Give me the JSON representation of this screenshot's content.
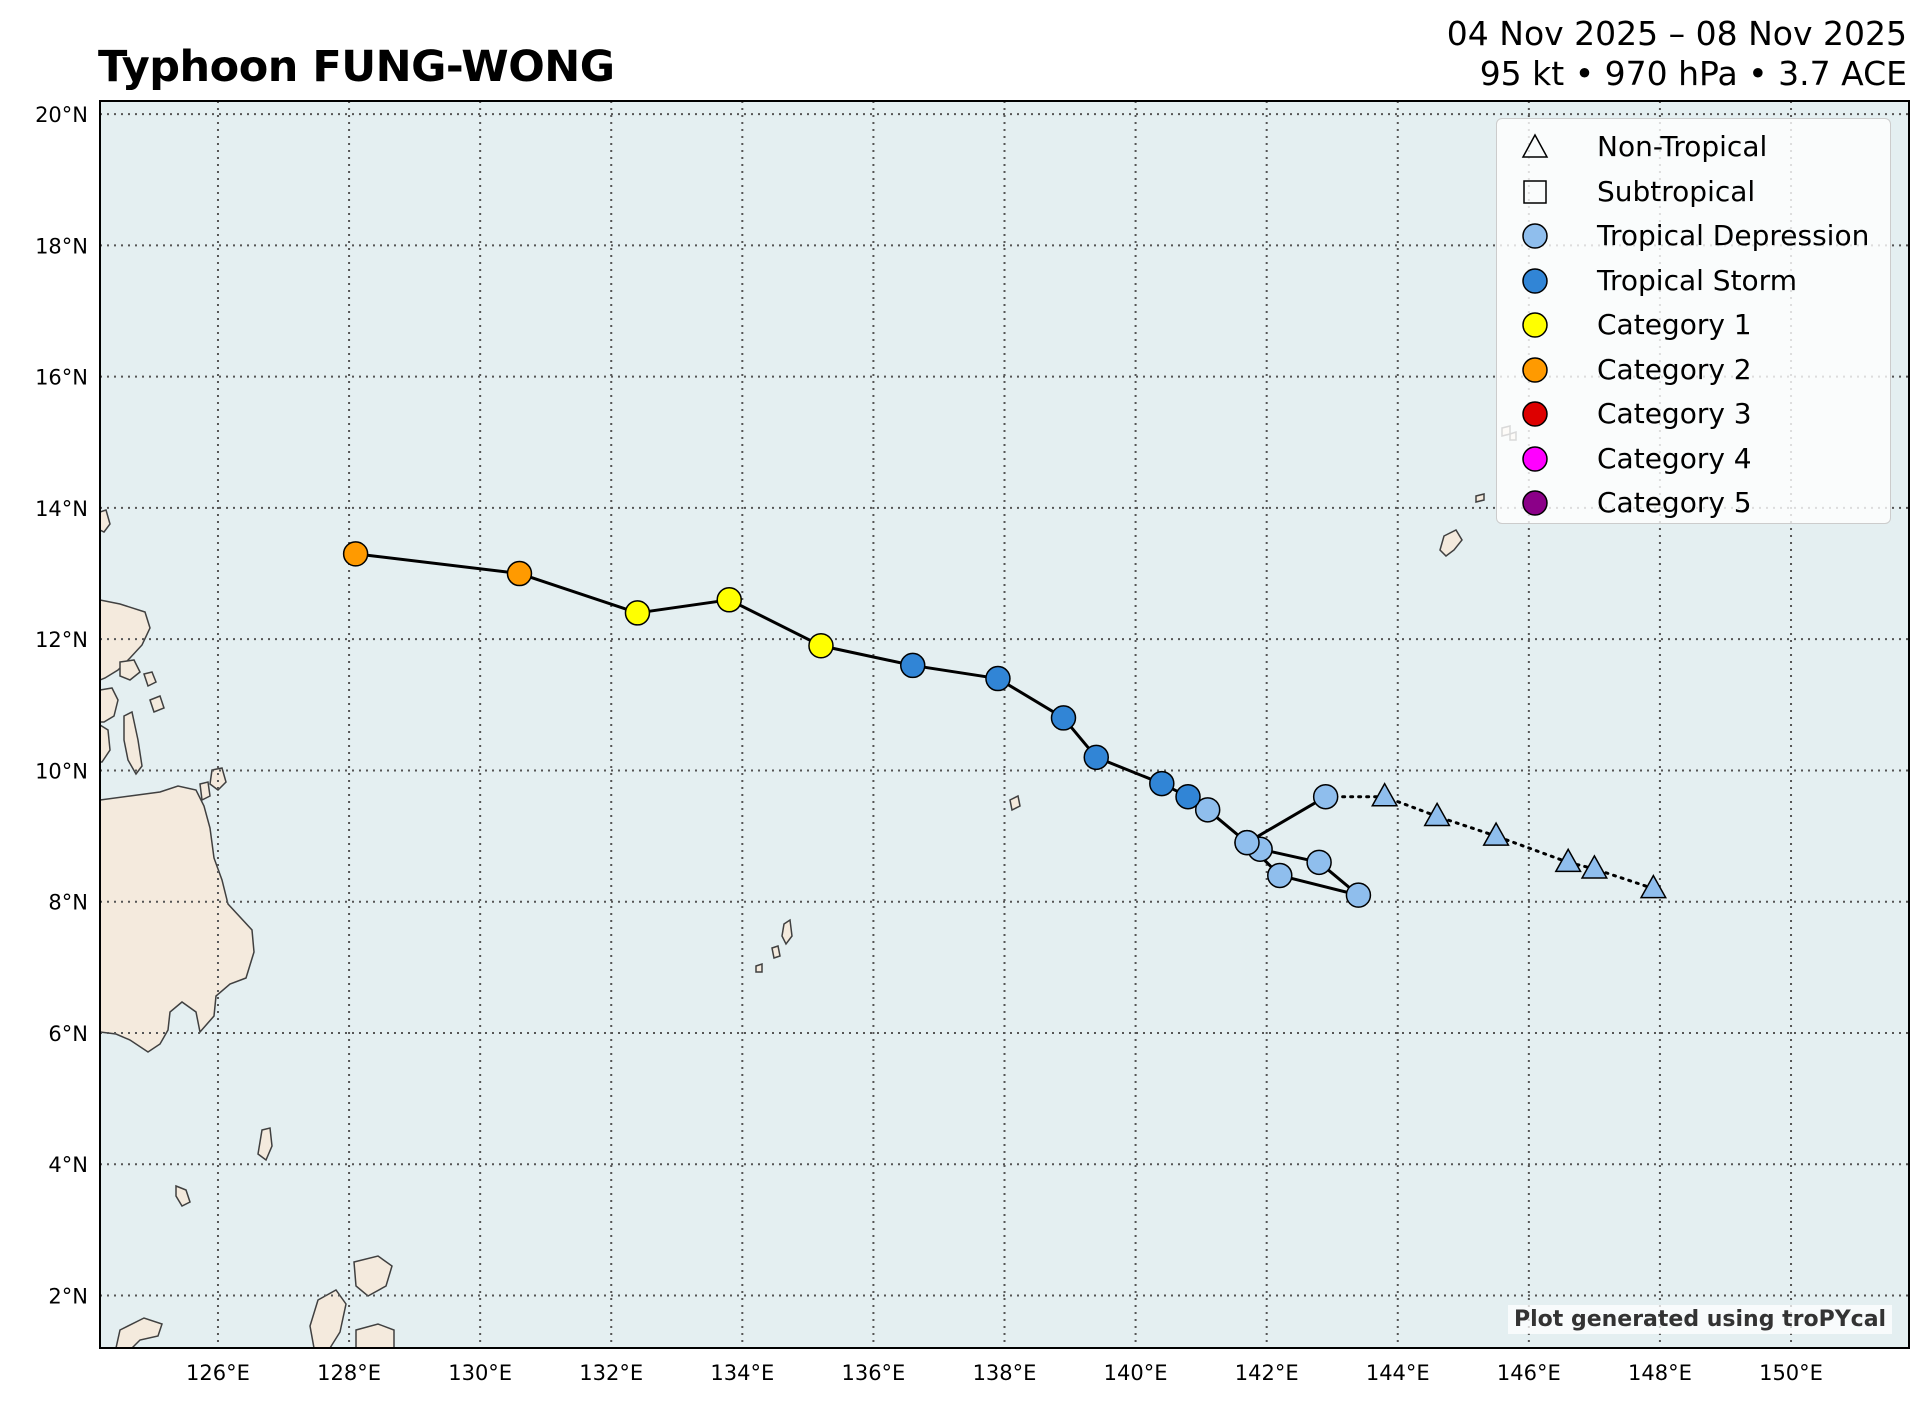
{
  "title": "Typhoon FUNG-WONG",
  "header": {
    "date_range": "04 Nov 2025 – 08 Nov 2025",
    "stats": "95 kt • 970 hPa • 3.7 ACE"
  },
  "credit": "Plot generated using troPYcal",
  "colors": {
    "ocean": "#e4eff1",
    "land": "#f4eadd",
    "coast": "#404040",
    "grid": "#555555",
    "track": "#000000",
    "Non-Tropical": "#8fbeed",
    "Subtropical": "#8fbeed",
    "Tropical Depression": "#8fbeed",
    "Tropical Storm": "#3185d6",
    "Category 1": "#ffff00",
    "Category 2": "#ff9a00",
    "Category 3": "#dd0000",
    "Category 4": "#ff00ff",
    "Category 5": "#8b0088"
  },
  "legend": [
    {
      "label": "Non-Tropical",
      "symbol": "triangle",
      "fill": "none"
    },
    {
      "label": "Subtropical",
      "symbol": "square",
      "fill": "none"
    },
    {
      "label": "Tropical Depression",
      "symbol": "circle",
      "fill": "#8fbeed"
    },
    {
      "label": "Tropical Storm",
      "symbol": "circle",
      "fill": "#3185d6"
    },
    {
      "label": "Category 1",
      "symbol": "circle",
      "fill": "#ffff00"
    },
    {
      "label": "Category 2",
      "symbol": "circle",
      "fill": "#ff9a00"
    },
    {
      "label": "Category 3",
      "symbol": "circle",
      "fill": "#dd0000"
    },
    {
      "label": "Category 4",
      "symbol": "circle",
      "fill": "#ff00ff"
    },
    {
      "label": "Category 5",
      "symbol": "circle",
      "fill": "#8b0088"
    }
  ],
  "chart_data": {
    "type": "scatter",
    "xlim": [
      124.2,
      151.8
    ],
    "ylim": [
      1.2,
      20.2
    ],
    "xticks": [
      {
        "value": 126,
        "label": "126°E"
      },
      {
        "value": 128,
        "label": "128°E"
      },
      {
        "value": 130,
        "label": "130°E"
      },
      {
        "value": 132,
        "label": "132°E"
      },
      {
        "value": 134,
        "label": "134°E"
      },
      {
        "value": 136,
        "label": "136°E"
      },
      {
        "value": 138,
        "label": "138°E"
      },
      {
        "value": 140,
        "label": "140°E"
      },
      {
        "value": 142,
        "label": "142°E"
      },
      {
        "value": 144,
        "label": "144°E"
      },
      {
        "value": 146,
        "label": "146°E"
      },
      {
        "value": 148,
        "label": "148°E"
      },
      {
        "value": 150,
        "label": "150°E"
      }
    ],
    "yticks": [
      {
        "value": 2,
        "label": "2°N"
      },
      {
        "value": 4,
        "label": "4°N"
      },
      {
        "value": 6,
        "label": "6°N"
      },
      {
        "value": 8,
        "label": "8°N"
      },
      {
        "value": 10,
        "label": "10°N"
      },
      {
        "value": 12,
        "label": "12°N"
      },
      {
        "value": 14,
        "label": "14°N"
      },
      {
        "value": 16,
        "label": "16°N"
      },
      {
        "value": 18,
        "label": "18°N"
      },
      {
        "value": 20,
        "label": "20°N"
      }
    ],
    "grid": true,
    "legend_position": "top-right",
    "track": [
      {
        "lon": 147.9,
        "lat": 8.2,
        "type": "Non-Tropical"
      },
      {
        "lon": 147.0,
        "lat": 8.5,
        "type": "Non-Tropical"
      },
      {
        "lon": 146.6,
        "lat": 8.6,
        "type": "Non-Tropical"
      },
      {
        "lon": 145.5,
        "lat": 9.0,
        "type": "Non-Tropical"
      },
      {
        "lon": 144.6,
        "lat": 9.3,
        "type": "Non-Tropical"
      },
      {
        "lon": 143.8,
        "lat": 9.6,
        "type": "Non-Tropical"
      },
      {
        "lon": 142.9,
        "lat": 9.6,
        "type": "Tropical Depression"
      },
      {
        "lon": 141.7,
        "lat": 8.9,
        "type": "Tropical Depression"
      },
      {
        "lon": 141.9,
        "lat": 8.8,
        "type": "Tropical Depression"
      },
      {
        "lon": 142.8,
        "lat": 8.6,
        "type": "Tropical Depression"
      },
      {
        "lon": 143.4,
        "lat": 8.1,
        "type": "Tropical Depression"
      },
      {
        "lon": 142.2,
        "lat": 8.4,
        "type": "Tropical Depression"
      },
      {
        "lon": 141.7,
        "lat": 8.9,
        "type": "Tropical Depression"
      },
      {
        "lon": 141.1,
        "lat": 9.4,
        "type": "Tropical Depression"
      },
      {
        "lon": 140.8,
        "lat": 9.6,
        "type": "Tropical Storm"
      },
      {
        "lon": 140.4,
        "lat": 9.8,
        "type": "Tropical Storm"
      },
      {
        "lon": 139.4,
        "lat": 10.2,
        "type": "Tropical Storm"
      },
      {
        "lon": 138.9,
        "lat": 10.8,
        "type": "Tropical Storm"
      },
      {
        "lon": 137.9,
        "lat": 11.4,
        "type": "Tropical Storm"
      },
      {
        "lon": 136.6,
        "lat": 11.6,
        "type": "Tropical Storm"
      },
      {
        "lon": 135.2,
        "lat": 11.9,
        "type": "Category 1"
      },
      {
        "lon": 133.8,
        "lat": 12.6,
        "type": "Category 1"
      },
      {
        "lon": 132.4,
        "lat": 12.4,
        "type": "Category 1"
      },
      {
        "lon": 130.6,
        "lat": 13.0,
        "type": "Category 2"
      },
      {
        "lon": 128.1,
        "lat": 13.3,
        "type": "Category 2"
      }
    ]
  }
}
